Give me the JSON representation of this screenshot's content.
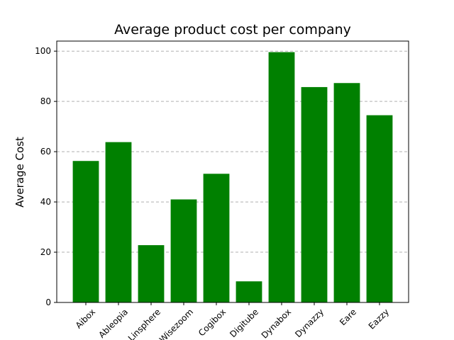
{
  "chart_data": {
    "type": "bar",
    "title": "Average product cost per company",
    "xlabel": "",
    "ylabel": "Average Cost",
    "categories": [
      "Aibox",
      "Ableopia",
      "Linsphere",
      "Wisezoom",
      "Cogibox",
      "Digitube",
      "Dynabox",
      "Dynazzy",
      "Eare",
      "Eazzy"
    ],
    "values": [
      56.3,
      63.8,
      22.8,
      41.0,
      51.2,
      8.4,
      99.6,
      85.7,
      87.3,
      74.5
    ],
    "ylim": [
      0,
      104
    ],
    "yticks": [
      0,
      20,
      40,
      60,
      80,
      100
    ],
    "grid": "y-axis dashed",
    "bar_color": "#008000",
    "grid_color": "#b0b0b0"
  }
}
